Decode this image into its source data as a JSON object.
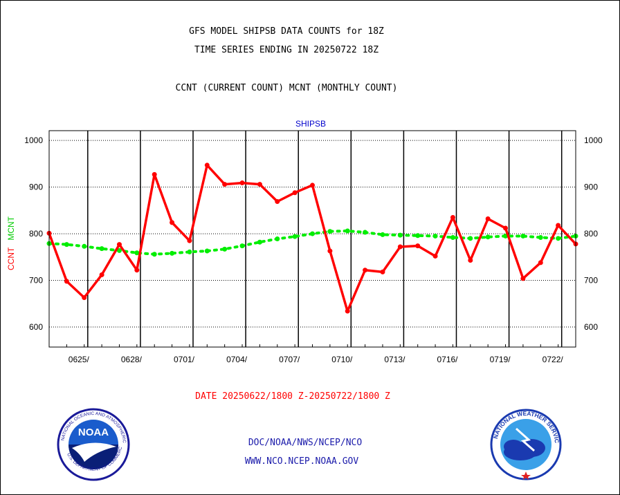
{
  "chart_data": {
    "type": "line",
    "title_lines": [
      "GFS MODEL SHIPSB DATA COUNTS for 18Z",
      "TIME SERIES ENDING IN 20250722 18Z"
    ],
    "subtitle": "CCNT (CURRENT COUNT) MCNT (MONTHLY COUNT)",
    "plot_label": "SHIPSB",
    "xlabel": "DATE 20250622/1800 Z-20250722/1800 Z",
    "ylabels": [
      "CCNT",
      "MCNT"
    ],
    "ylim": [
      557,
      1021
    ],
    "xlim": [
      0,
      30
    ],
    "yticks": [
      600,
      700,
      800,
      900,
      1000
    ],
    "xticks": [
      {
        "x": 2.2,
        "label": "0625/"
      },
      {
        "x": 5.2,
        "label": "0628/"
      },
      {
        "x": 8.2,
        "label": "0701/"
      },
      {
        "x": 11.2,
        "label": "0704/"
      },
      {
        "x": 14.2,
        "label": "0707/"
      },
      {
        "x": 17.2,
        "label": "0710/"
      },
      {
        "x": 20.2,
        "label": "0713/"
      },
      {
        "x": 23.2,
        "label": "0716/"
      },
      {
        "x": 26.2,
        "label": "0719/"
      },
      {
        "x": 29.2,
        "label": "0722/"
      }
    ],
    "grid": true,
    "series": [
      {
        "name": "CCNT",
        "color": "#ff0000",
        "x": [
          0,
          1,
          2,
          3,
          4,
          5,
          6,
          7,
          8,
          9,
          10,
          11,
          12,
          13,
          14,
          15,
          16,
          17,
          18,
          19,
          20,
          21,
          22,
          23,
          24,
          25,
          26,
          27,
          28,
          29,
          30
        ],
        "values": [
          801,
          698,
          663,
          712,
          777,
          722,
          927,
          824,
          785,
          947,
          906,
          909,
          906,
          869,
          888,
          904,
          763,
          634,
          722,
          718,
          772,
          774,
          752,
          835,
          743,
          832,
          812,
          704,
          738,
          818,
          778
        ]
      },
      {
        "name": "MCNT",
        "color": "#00ee00",
        "x": [
          0,
          1,
          2,
          3,
          4,
          5,
          6,
          7,
          8,
          9,
          10,
          11,
          12,
          13,
          14,
          15,
          16,
          17,
          18,
          19,
          20,
          21,
          22,
          23,
          24,
          25,
          26,
          27,
          28,
          29,
          30
        ],
        "values": [
          779,
          777,
          773,
          768,
          764,
          759,
          756,
          758,
          761,
          763,
          767,
          774,
          782,
          789,
          794,
          800,
          805,
          806,
          803,
          798,
          797,
          796,
          795,
          792,
          790,
          793,
          795,
          795,
          792,
          790,
          795
        ]
      }
    ]
  },
  "footer": {
    "line1": "DOC/NOAA/NWS/NCEP/NCO",
    "line2": "WWW.NCO.NCEP.NOAA.GOV"
  }
}
